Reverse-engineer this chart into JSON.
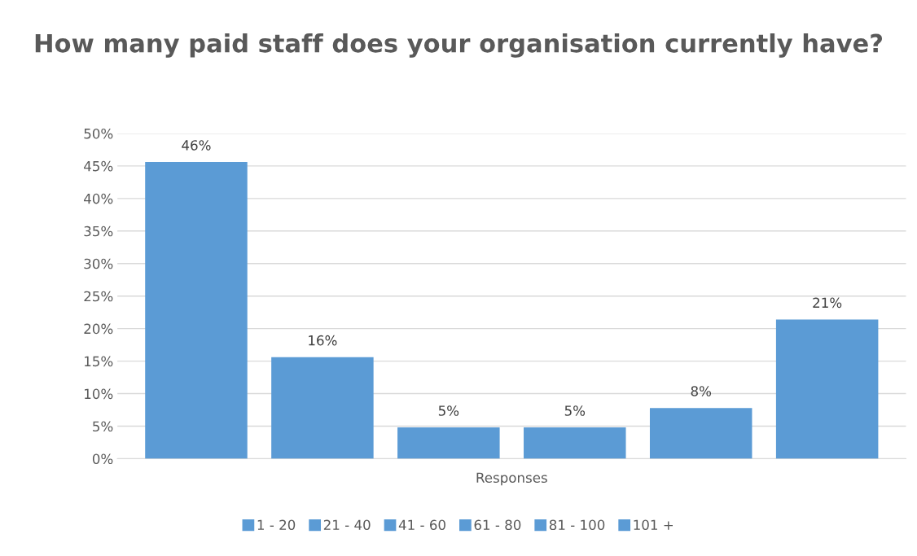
{
  "chart_data": {
    "type": "bar",
    "title": "How many paid staff does your organisation currently have?",
    "categories": [
      "Responses"
    ],
    "series": [
      {
        "name": "1 - 20",
        "color": "#5b9bd5",
        "values": [
          45.6
        ],
        "value_labels": [
          "46%"
        ]
      },
      {
        "name": "21 - 40",
        "color": "#5b9bd5",
        "values": [
          15.6
        ],
        "value_labels": [
          "16%"
        ]
      },
      {
        "name": "41 - 60",
        "color": "#5b9bd5",
        "values": [
          4.8
        ],
        "value_labels": [
          "5%"
        ]
      },
      {
        "name": "61 - 80",
        "color": "#5b9bd5",
        "values": [
          4.8
        ],
        "value_labels": [
          "5%"
        ]
      },
      {
        "name": "81 - 100",
        "color": "#5b9bd5",
        "values": [
          7.8
        ],
        "value_labels": [
          "8%"
        ]
      },
      {
        "name": "101 +",
        "color": "#5b9bd5",
        "values": [
          21.4
        ],
        "value_labels": [
          "21%"
        ]
      }
    ],
    "ylim": [
      0,
      50
    ],
    "yticks": [
      {
        "value": 0,
        "label": "0%"
      },
      {
        "value": 5,
        "label": "5%"
      },
      {
        "value": 10,
        "label": "10%"
      },
      {
        "value": 15,
        "label": "15%"
      },
      {
        "value": 20,
        "label": "20%"
      },
      {
        "value": 25,
        "label": "25%"
      },
      {
        "value": 30,
        "label": "30%"
      },
      {
        "value": 35,
        "label": "35%"
      },
      {
        "value": 40,
        "label": "40%"
      },
      {
        "value": 45,
        "label": "45%"
      },
      {
        "value": 50,
        "label": "50%"
      }
    ],
    "grid": "y",
    "legend": "bottom"
  }
}
